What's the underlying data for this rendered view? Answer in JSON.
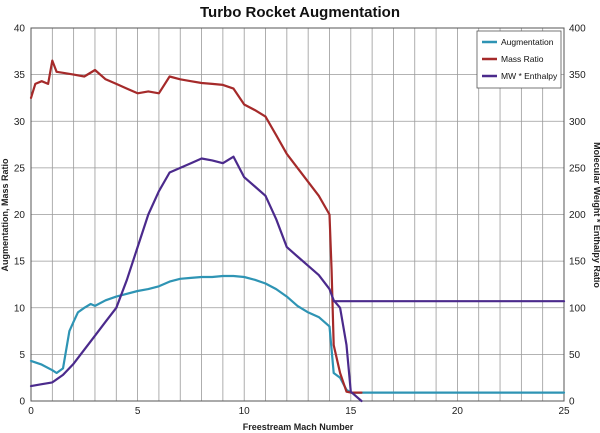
{
  "chart_data": {
    "type": "line",
    "title": "Turbo Rocket Augmentation",
    "xlabel": "Freestream Mach Number",
    "ylabel_left": "Augmentation, Mass Ratio",
    "ylabel_right": "Molecular Weight * Enthalpy Ratio",
    "xlim": [
      0,
      25
    ],
    "ylim_left": [
      0,
      40
    ],
    "ylim_right": [
      0,
      400
    ],
    "x_ticks": [
      "0",
      "5",
      "10",
      "15",
      "20",
      "25"
    ],
    "y_ticks_left": [
      "0",
      "5",
      "10",
      "15",
      "20",
      "25",
      "30",
      "35",
      "40"
    ],
    "y_ticks_right": [
      "0",
      "50",
      "100",
      "150",
      "200",
      "250",
      "300",
      "350",
      "400"
    ],
    "grid": true,
    "legend_position": "top-right",
    "series": [
      {
        "name": "Augmentation",
        "axis": "left",
        "color": "#2e94b4",
        "x": [
          0,
          0.5,
          1,
          1.2,
          1.5,
          1.8,
          2,
          2.2,
          2.5,
          2.8,
          3,
          3.5,
          4,
          4.5,
          5,
          5.5,
          6,
          6.5,
          7,
          7.5,
          8,
          8.5,
          9,
          9.5,
          10,
          10.5,
          11,
          11.5,
          12,
          12.5,
          13,
          13.5,
          14,
          14.2,
          14.5,
          14.8,
          15,
          16,
          20,
          25
        ],
        "y": [
          4.3,
          3.9,
          3.3,
          3.0,
          3.5,
          7.5,
          8.5,
          9.5,
          10.0,
          10.4,
          10.2,
          10.8,
          11.2,
          11.5,
          11.8,
          12.0,
          12.3,
          12.8,
          13.1,
          13.2,
          13.3,
          13.3,
          13.4,
          13.4,
          13.3,
          13.0,
          12.6,
          12.0,
          11.2,
          10.2,
          9.5,
          9.0,
          8.0,
          3.0,
          2.5,
          1.2,
          0.9,
          0.9,
          0.9,
          0.9
        ]
      },
      {
        "name": "Mass Ratio",
        "axis": "left",
        "color": "#a52a2a",
        "x": [
          0,
          0.2,
          0.5,
          0.8,
          1,
          1.2,
          1.5,
          2,
          2.5,
          3,
          3.5,
          4,
          4.5,
          5,
          5.5,
          6,
          6.5,
          7,
          7.5,
          8,
          8.5,
          9,
          9.5,
          10,
          10.5,
          11,
          11.5,
          12,
          12.5,
          13,
          13.5,
          14,
          14.1,
          14.2,
          14.5,
          14.8,
          15,
          15.5
        ],
        "y": [
          32.5,
          34.0,
          34.3,
          34.0,
          36.5,
          35.3,
          35.2,
          35.0,
          34.8,
          35.5,
          34.5,
          34.0,
          33.5,
          33.0,
          33.2,
          33.0,
          34.8,
          34.5,
          34.3,
          34.1,
          34.0,
          33.9,
          33.5,
          31.8,
          31.2,
          30.5,
          28.5,
          26.5,
          25.0,
          23.5,
          22.0,
          20.0,
          14.0,
          6.0,
          3.0,
          1.0,
          0.9,
          0.9
        ]
      },
      {
        "name": "MW * Enthalpy",
        "axis": "right",
        "color": "#4b2a8c",
        "x": [
          0,
          0.5,
          1,
          1.5,
          2,
          2.5,
          3,
          3.5,
          4,
          4.5,
          5,
          5.5,
          6,
          6.5,
          7,
          7.5,
          8,
          8.5,
          9,
          9.5,
          10,
          10.5,
          11,
          11.5,
          12,
          12.5,
          13,
          13.5,
          14,
          14.2,
          14.5,
          14.8,
          15,
          15.5
        ],
        "y": [
          16,
          18,
          20,
          28,
          40,
          55,
          70,
          85,
          100,
          130,
          165,
          200,
          225,
          245,
          250,
          255,
          260,
          258,
          255,
          262,
          240,
          230,
          220,
          195,
          165,
          155,
          145,
          135,
          120,
          108,
          100,
          60,
          10,
          0
        ]
      },
      {
        "name": "MW * Enthalpy",
        "axis": "right",
        "color": "#4b2a8c",
        "x": [
          14.2,
          25
        ],
        "y": [
          107,
          107
        ]
      }
    ]
  }
}
